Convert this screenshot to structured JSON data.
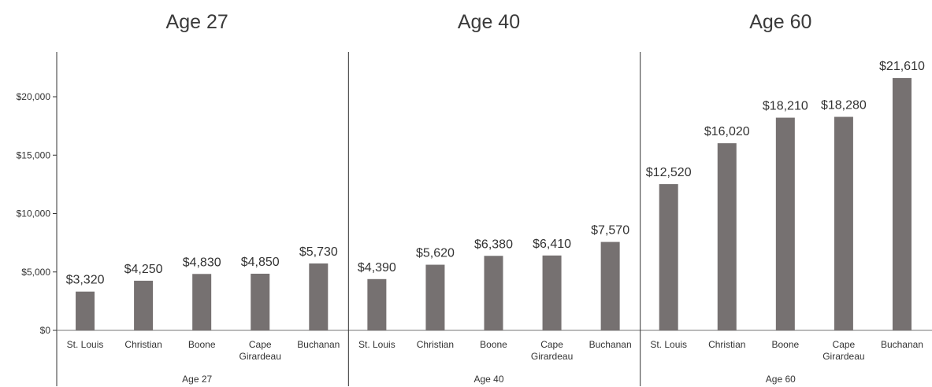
{
  "chart_data": {
    "type": "bar",
    "grid": false,
    "bar_color": "#767171",
    "ylim": [
      0,
      24000
    ],
    "yticks": [
      "$0",
      "$5,000",
      "$10,000",
      "$15,000",
      "$20,000"
    ],
    "ytick_values": [
      0,
      5000,
      10000,
      15000,
      20000
    ],
    "categories": [
      "St. Louis",
      "Christian",
      "Boone",
      "Cape Girardeau",
      "Buchanan"
    ],
    "category_lines": [
      [
        "St. Louis"
      ],
      [
        "Christian"
      ],
      [
        "Boone"
      ],
      [
        "Cape",
        "Girardeau"
      ],
      [
        "Buchanan"
      ]
    ],
    "panels": [
      {
        "title": "Age 27",
        "group_label": "Age 27",
        "values": [
          3320,
          4250,
          4830,
          4850,
          5730
        ],
        "labels": [
          "$3,320",
          "$4,250",
          "$4,830",
          "$4,850",
          "$5,730"
        ]
      },
      {
        "title": "Age 40",
        "group_label": "Age 40",
        "values": [
          4390,
          5620,
          6380,
          6410,
          7570
        ],
        "labels": [
          "$4,390",
          "$5,620",
          "$6,380",
          "$6,410",
          "$7,570"
        ]
      },
      {
        "title": "Age 60",
        "group_label": "Age 60",
        "values": [
          12520,
          16020,
          18210,
          18280,
          21610
        ],
        "labels": [
          "$12,520",
          "$16,020",
          "$18,210",
          "$18,280",
          "$21,610"
        ]
      }
    ]
  }
}
